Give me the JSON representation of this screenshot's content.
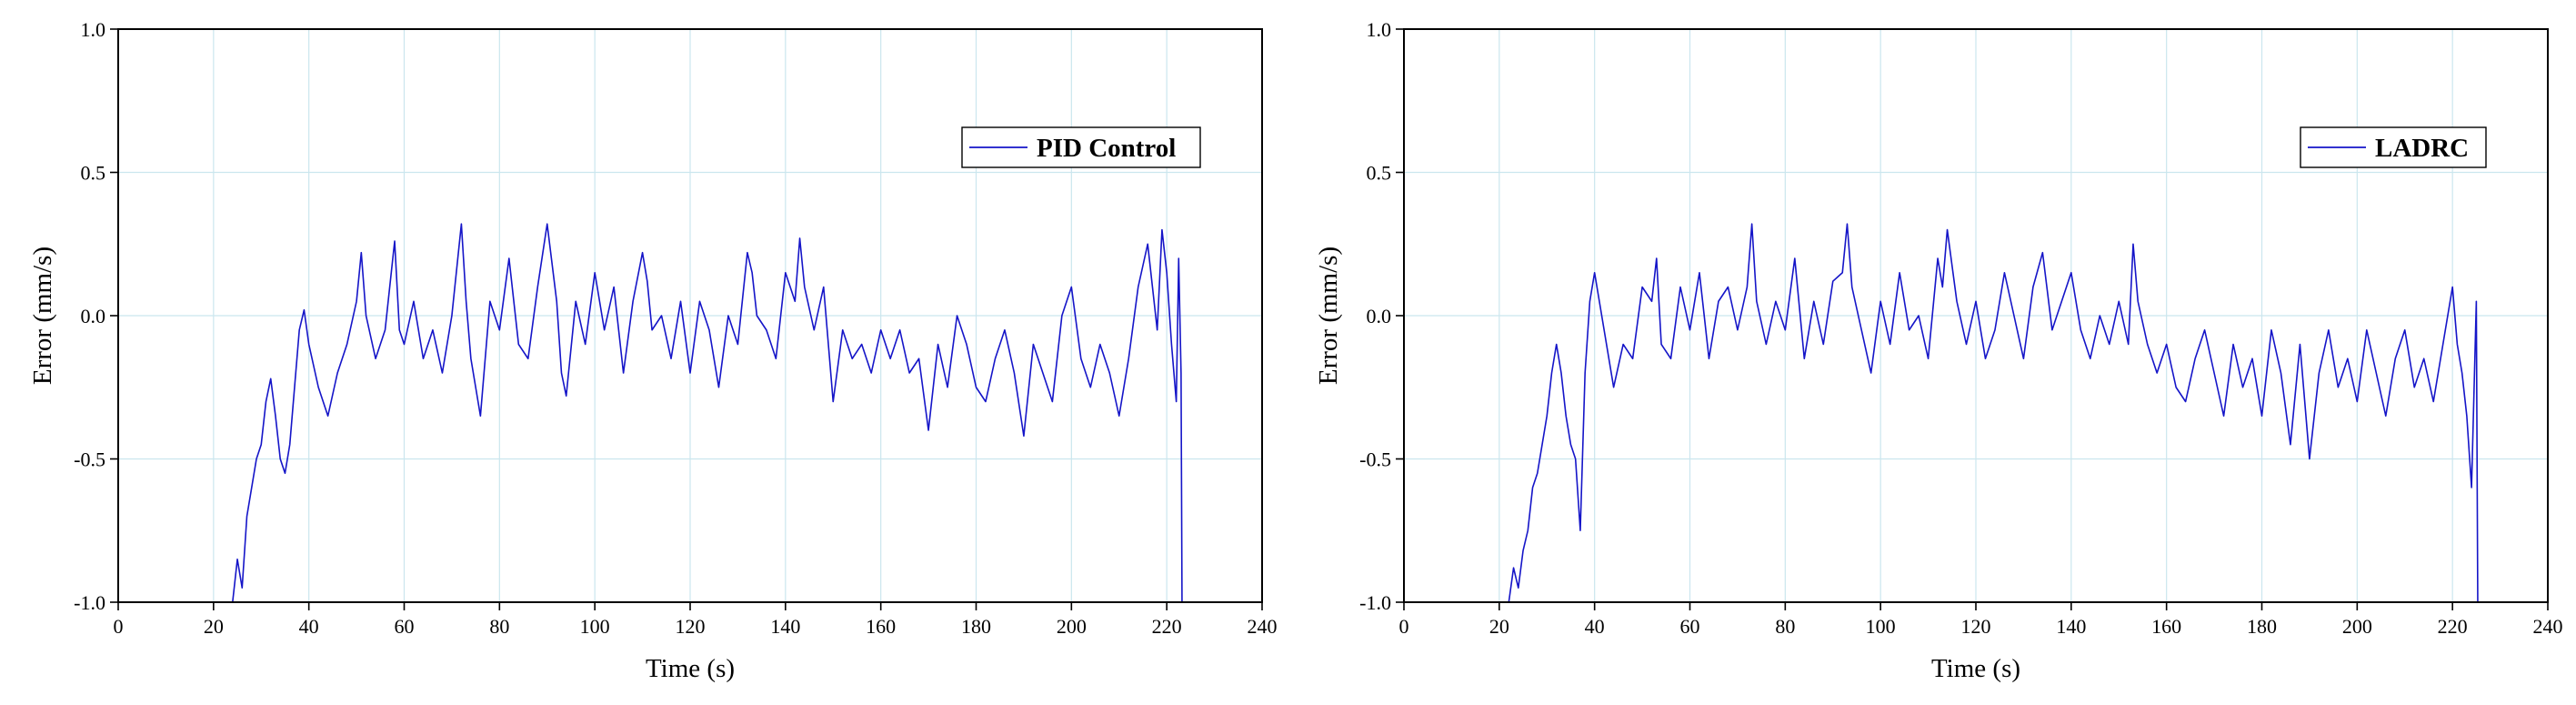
{
  "chart_data": [
    {
      "type": "line",
      "title": "",
      "xlabel": "Time (s)",
      "ylabel": "Error (mm/s)",
      "xlim": [
        0,
        240
      ],
      "ylim": [
        -1.0,
        1.0
      ],
      "xticks": [
        0,
        20,
        40,
        60,
        80,
        100,
        120,
        140,
        160,
        180,
        200,
        220,
        240
      ],
      "yticks": [
        -1.0,
        -0.5,
        0.0,
        0.5,
        1.0
      ],
      "ytick_labels": [
        "-1.0",
        "-0.5",
        "0.0",
        "0.5",
        "1.0"
      ],
      "grid": true,
      "legend_position": "top-right",
      "series": [
        {
          "name": "PID Control",
          "color": "#1515c8",
          "x": [
            24,
            25,
            26,
            27,
            28,
            29,
            30,
            31,
            32,
            33,
            34,
            35,
            36,
            37,
            38,
            39,
            40,
            42,
            44,
            46,
            48,
            50,
            51,
            52,
            54,
            56,
            58,
            59,
            60,
            62,
            64,
            66,
            68,
            70,
            72,
            73,
            74,
            76,
            78,
            80,
            82,
            84,
            86,
            88,
            90,
            92,
            93,
            94,
            96,
            98,
            100,
            102,
            104,
            106,
            108,
            110,
            111,
            112,
            114,
            116,
            118,
            120,
            122,
            124,
            126,
            128,
            130,
            132,
            133,
            134,
            136,
            138,
            140,
            142,
            143,
            144,
            146,
            148,
            150,
            152,
            154,
            156,
            158,
            160,
            162,
            164,
            166,
            168,
            170,
            172,
            174,
            176,
            178,
            180,
            182,
            184,
            186,
            188,
            190,
            192,
            194,
            196,
            198,
            200,
            202,
            204,
            206,
            208,
            210,
            212,
            214,
            216,
            217,
            218,
            219,
            220,
            221,
            222,
            222.5,
            223,
            223.2
          ],
          "y": [
            -1.0,
            -0.85,
            -0.95,
            -0.7,
            -0.6,
            -0.5,
            -0.45,
            -0.3,
            -0.22,
            -0.35,
            -0.5,
            -0.55,
            -0.45,
            -0.25,
            -0.05,
            0.02,
            -0.1,
            -0.25,
            -0.35,
            -0.2,
            -0.1,
            0.05,
            0.22,
            0.0,
            -0.15,
            -0.05,
            0.26,
            -0.05,
            -0.1,
            0.05,
            -0.15,
            -0.05,
            -0.2,
            0.0,
            0.32,
            0.05,
            -0.15,
            -0.35,
            0.05,
            -0.05,
            0.2,
            -0.1,
            -0.15,
            0.1,
            0.32,
            0.05,
            -0.2,
            -0.28,
            0.05,
            -0.1,
            0.15,
            -0.05,
            0.1,
            -0.2,
            0.05,
            0.22,
            0.12,
            -0.05,
            0.0,
            -0.15,
            0.05,
            -0.2,
            0.05,
            -0.05,
            -0.25,
            0.0,
            -0.1,
            0.22,
            0.15,
            0.0,
            -0.05,
            -0.15,
            0.15,
            0.05,
            0.27,
            0.1,
            -0.05,
            0.1,
            -0.3,
            -0.05,
            -0.15,
            -0.1,
            -0.2,
            -0.05,
            -0.15,
            -0.05,
            -0.2,
            -0.15,
            -0.4,
            -0.1,
            -0.25,
            0.0,
            -0.1,
            -0.25,
            -0.3,
            -0.15,
            -0.05,
            -0.2,
            -0.42,
            -0.1,
            -0.2,
            -0.3,
            0.0,
            0.1,
            -0.15,
            -0.25,
            -0.1,
            -0.2,
            -0.35,
            -0.15,
            0.1,
            0.25,
            0.1,
            -0.05,
            0.3,
            0.15,
            -0.1,
            -0.3,
            0.2,
            -0.2,
            -1.0
          ]
        },
        {
          "name": "LADRC",
          "color": "#1515c8",
          "x": [
            22,
            23,
            24,
            25,
            26,
            27,
            28,
            29,
            30,
            31,
            32,
            33,
            34,
            35,
            36,
            37,
            38,
            39,
            40,
            42,
            44,
            46,
            48,
            50,
            52,
            53,
            54,
            56,
            58,
            60,
            62,
            64,
            66,
            68,
            70,
            72,
            73,
            74,
            76,
            78,
            80,
            82,
            84,
            86,
            88,
            90,
            92,
            93,
            94,
            96,
            98,
            100,
            102,
            104,
            106,
            108,
            110,
            112,
            113,
            114,
            116,
            118,
            120,
            122,
            124,
            126,
            128,
            130,
            132,
            134,
            136,
            138,
            140,
            142,
            144,
            146,
            148,
            150,
            152,
            153,
            154,
            156,
            158,
            160,
            162,
            164,
            166,
            168,
            170,
            172,
            174,
            176,
            178,
            180,
            182,
            184,
            186,
            188,
            190,
            192,
            194,
            196,
            198,
            200,
            202,
            204,
            206,
            208,
            210,
            212,
            214,
            216,
            218,
            220,
            221,
            222,
            223,
            224,
            225,
            225.3
          ],
          "y": [
            -1.0,
            -0.88,
            -0.95,
            -0.82,
            -0.75,
            -0.6,
            -0.55,
            -0.45,
            -0.35,
            -0.2,
            -0.1,
            -0.2,
            -0.35,
            -0.45,
            -0.5,
            -0.75,
            -0.2,
            0.05,
            0.15,
            -0.05,
            -0.25,
            -0.1,
            -0.15,
            0.1,
            0.05,
            0.2,
            -0.1,
            -0.15,
            0.1,
            -0.05,
            0.15,
            -0.15,
            0.05,
            0.1,
            -0.05,
            0.1,
            0.32,
            0.05,
            -0.1,
            0.05,
            -0.05,
            0.2,
            -0.15,
            0.05,
            -0.1,
            0.12,
            0.15,
            0.32,
            0.1,
            -0.05,
            -0.2,
            0.05,
            -0.1,
            0.15,
            -0.05,
            0.0,
            -0.15,
            0.2,
            0.1,
            0.3,
            0.05,
            -0.1,
            0.05,
            -0.15,
            -0.05,
            0.15,
            0.0,
            -0.15,
            0.1,
            0.22,
            -0.05,
            0.05,
            0.15,
            -0.05,
            -0.15,
            0.0,
            -0.1,
            0.05,
            -0.1,
            0.25,
            0.05,
            -0.1,
            -0.2,
            -0.1,
            -0.25,
            -0.3,
            -0.15,
            -0.05,
            -0.2,
            -0.35,
            -0.1,
            -0.25,
            -0.15,
            -0.35,
            -0.05,
            -0.2,
            -0.45,
            -0.1,
            -0.5,
            -0.2,
            -0.05,
            -0.25,
            -0.15,
            -0.3,
            -0.05,
            -0.2,
            -0.35,
            -0.15,
            -0.05,
            -0.25,
            -0.15,
            -0.3,
            -0.1,
            0.1,
            -0.1,
            -0.2,
            -0.35,
            -0.6,
            0.05,
            -1.0
          ]
        }
      ]
    }
  ]
}
